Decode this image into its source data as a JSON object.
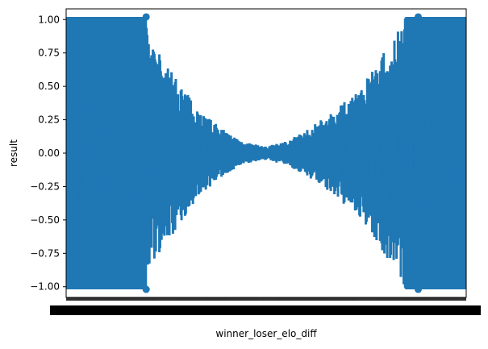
{
  "chart_data": {
    "type": "line",
    "title": "",
    "xlabel": "winner_loser_elo_diff",
    "ylabel": "result",
    "ylim": [
      -1.08,
      1.08
    ],
    "yticks": [
      "1.00",
      "0.75",
      "0.50",
      "0.25",
      "0.00",
      "−0.25",
      "−0.50",
      "−0.75",
      "−1.00"
    ],
    "ytick_values": [
      1.0,
      0.75,
      0.5,
      0.25,
      0.0,
      -0.25,
      -0.5,
      -0.75,
      -1.0
    ],
    "x_tick_density": "very dense (unreadable, overlapping labels)",
    "grid": false,
    "legend": "none",
    "series": [
      {
        "color": "#1f77b4",
        "description": "mean result with error bars per elo diff category",
        "envelope": {
          "x": [
            0.0,
            0.2,
            0.205,
            0.25,
            0.3,
            0.35,
            0.4,
            0.45,
            0.5,
            0.55,
            0.6,
            0.65,
            0.7,
            0.75,
            0.8,
            0.85,
            0.88,
            0.9,
            0.95,
            1.0
          ],
          "upper": [
            1.02,
            1.02,
            0.85,
            0.68,
            0.46,
            0.28,
            0.16,
            0.08,
            0.05,
            0.09,
            0.17,
            0.28,
            0.4,
            0.55,
            0.78,
            1.02,
            1.02,
            1.02,
            1.02,
            1.02
          ],
          "lower": [
            -1.02,
            -1.02,
            -0.85,
            -0.68,
            -0.46,
            -0.28,
            -0.16,
            -0.08,
            -0.05,
            -0.09,
            -0.17,
            -0.28,
            -0.4,
            -0.55,
            -0.78,
            -1.02,
            -1.02,
            -1.02,
            -1.02,
            -1.02
          ]
        }
      }
    ]
  }
}
